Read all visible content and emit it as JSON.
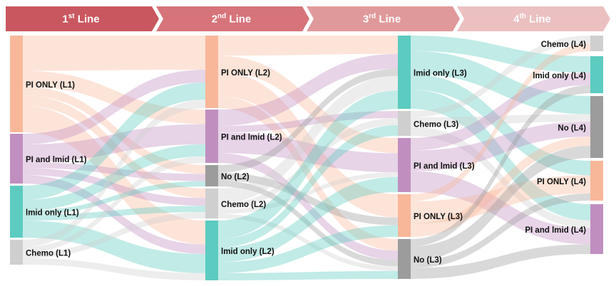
{
  "header": {
    "stages": [
      {
        "number": "1",
        "suffix": "st",
        "label": " Line"
      },
      {
        "number": "2",
        "suffix": "nd",
        "label": " Line"
      },
      {
        "number": "3",
        "suffix": "rd",
        "label": " Line"
      },
      {
        "number": "4",
        "suffix": "th",
        "label": " Line"
      }
    ]
  },
  "columns": [
    {
      "nodes": [
        {
          "label": "PI ONLY (L1)",
          "color": "#f9b79a"
        },
        {
          "label": "PI and lmid (L1)",
          "color": "#c08fbf"
        },
        {
          "label": "lmid only (L1)",
          "color": "#5ccbc0"
        },
        {
          "label": "Chemo (L1)",
          "color": "#cfcfcf"
        }
      ]
    },
    {
      "nodes": [
        {
          "label": "PI ONLY (L2)",
          "color": "#f9b79a"
        },
        {
          "label": "PI and lmid (L2)",
          "color": "#c08fbf"
        },
        {
          "label": "No (L2)",
          "color": "#9c9c9c"
        },
        {
          "label": "Chemo (L2)",
          "color": "#cfcfcf"
        },
        {
          "label": "lmid only (L2)",
          "color": "#5ccbc0"
        }
      ]
    },
    {
      "nodes": [
        {
          "label": "lmid only (L3)",
          "color": "#5ccbc0"
        },
        {
          "label": "Chemo (L3)",
          "color": "#cfcfcf"
        },
        {
          "label": "PI and lmid (L3)",
          "color": "#c08fbf"
        },
        {
          "label": "PI ONLY (L3)",
          "color": "#f9b79a"
        },
        {
          "label": "No (L3)",
          "color": "#9c9c9c"
        }
      ]
    },
    {
      "nodes": [
        {
          "label": "Chemo (L4)",
          "color": "#cfcfcf"
        },
        {
          "label": "lmid only (L4)",
          "color": "#5ccbc0"
        },
        {
          "label": "No (L4)",
          "color": "#9c9c9c"
        },
        {
          "label": "PI ONLY (L4)",
          "color": "#f9b79a"
        },
        {
          "label": "PI and lmid (L4)",
          "color": "#c08fbf"
        }
      ]
    }
  ]
}
